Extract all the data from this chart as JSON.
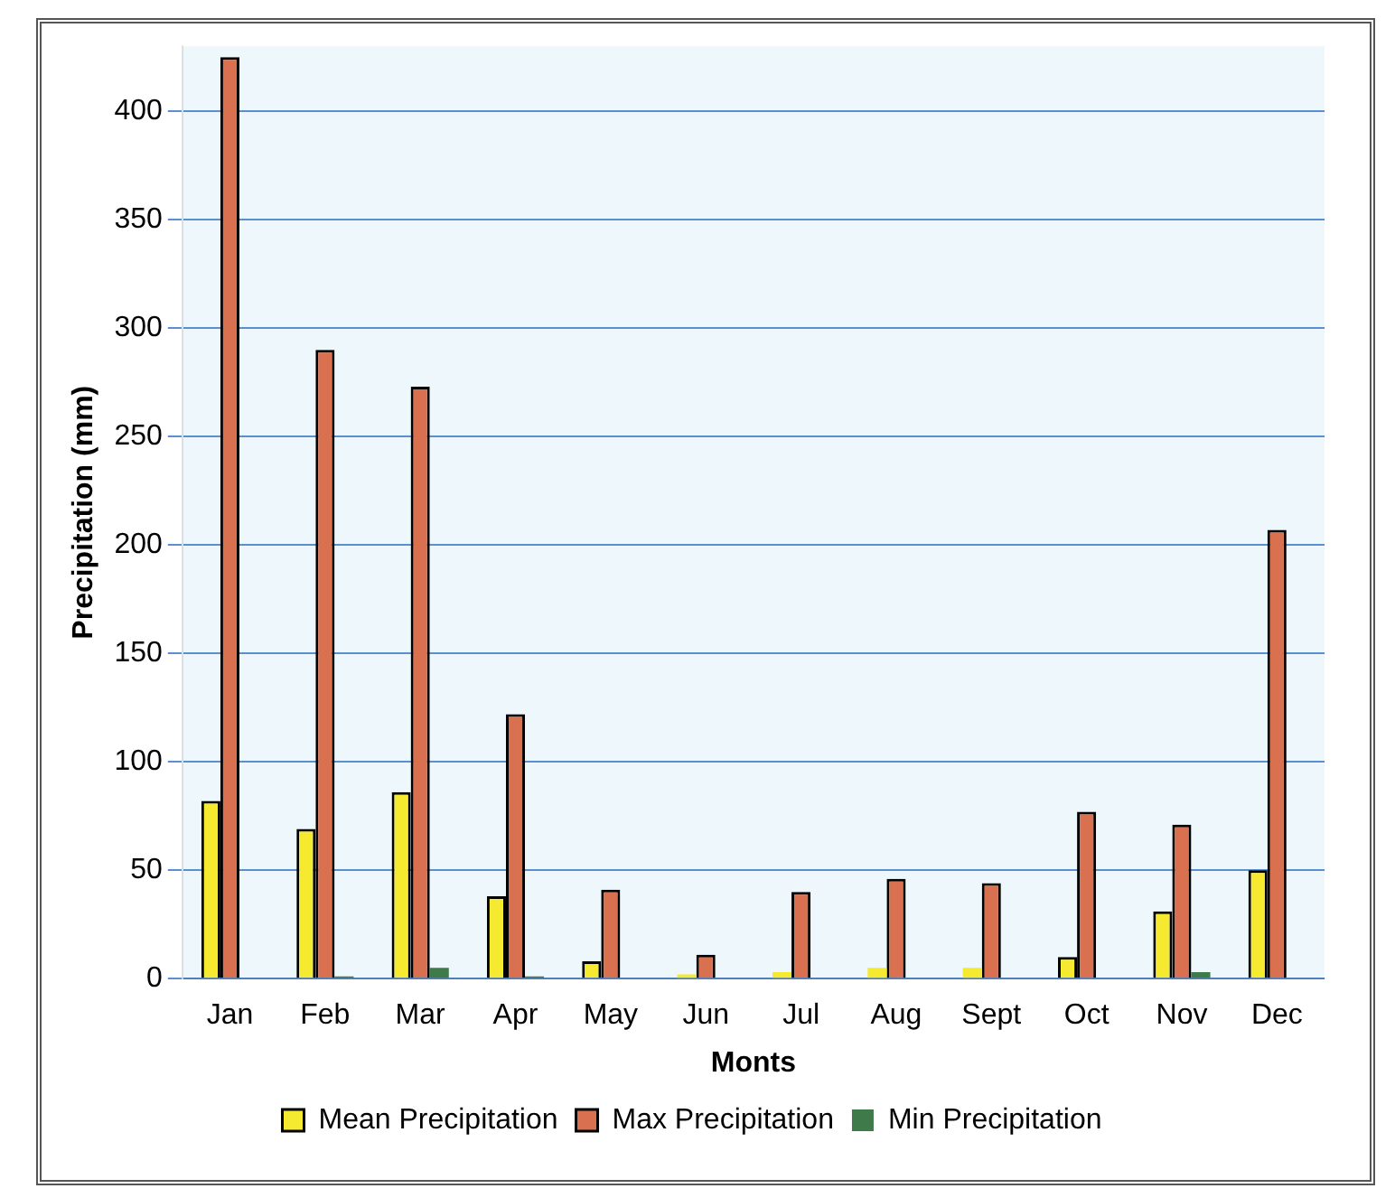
{
  "chart_data": {
    "type": "bar",
    "xlabel": "Monts",
    "ylabel": "Precipitation (mm)",
    "categories": [
      "Jan",
      "Feb",
      "Mar",
      "Apr",
      "May",
      "Jun",
      "Jul",
      "Aug",
      "Sept",
      "Oct",
      "Nov",
      "Dec"
    ],
    "series": [
      {
        "name": "Mean Precipitation",
        "color": "#f5ea30",
        "values": [
          82,
          69,
          86,
          38,
          8,
          2,
          3,
          5,
          5,
          10,
          31,
          50
        ]
      },
      {
        "name": "Max Precipitation",
        "color": "#d9704f",
        "values": [
          425,
          290,
          273,
          122,
          41,
          11,
          40,
          46,
          44,
          77,
          71,
          207
        ]
      },
      {
        "name": "Min Precipitation",
        "color": "#3f7a4a",
        "values": [
          0,
          1,
          5,
          1,
          0,
          0,
          0,
          0,
          0,
          0,
          3,
          0
        ]
      }
    ],
    "ylim": [
      0,
      430
    ],
    "yticks": [
      0,
      50,
      100,
      150,
      200,
      250,
      300,
      350,
      400
    ],
    "grid": "y",
    "legend": "bottom"
  }
}
